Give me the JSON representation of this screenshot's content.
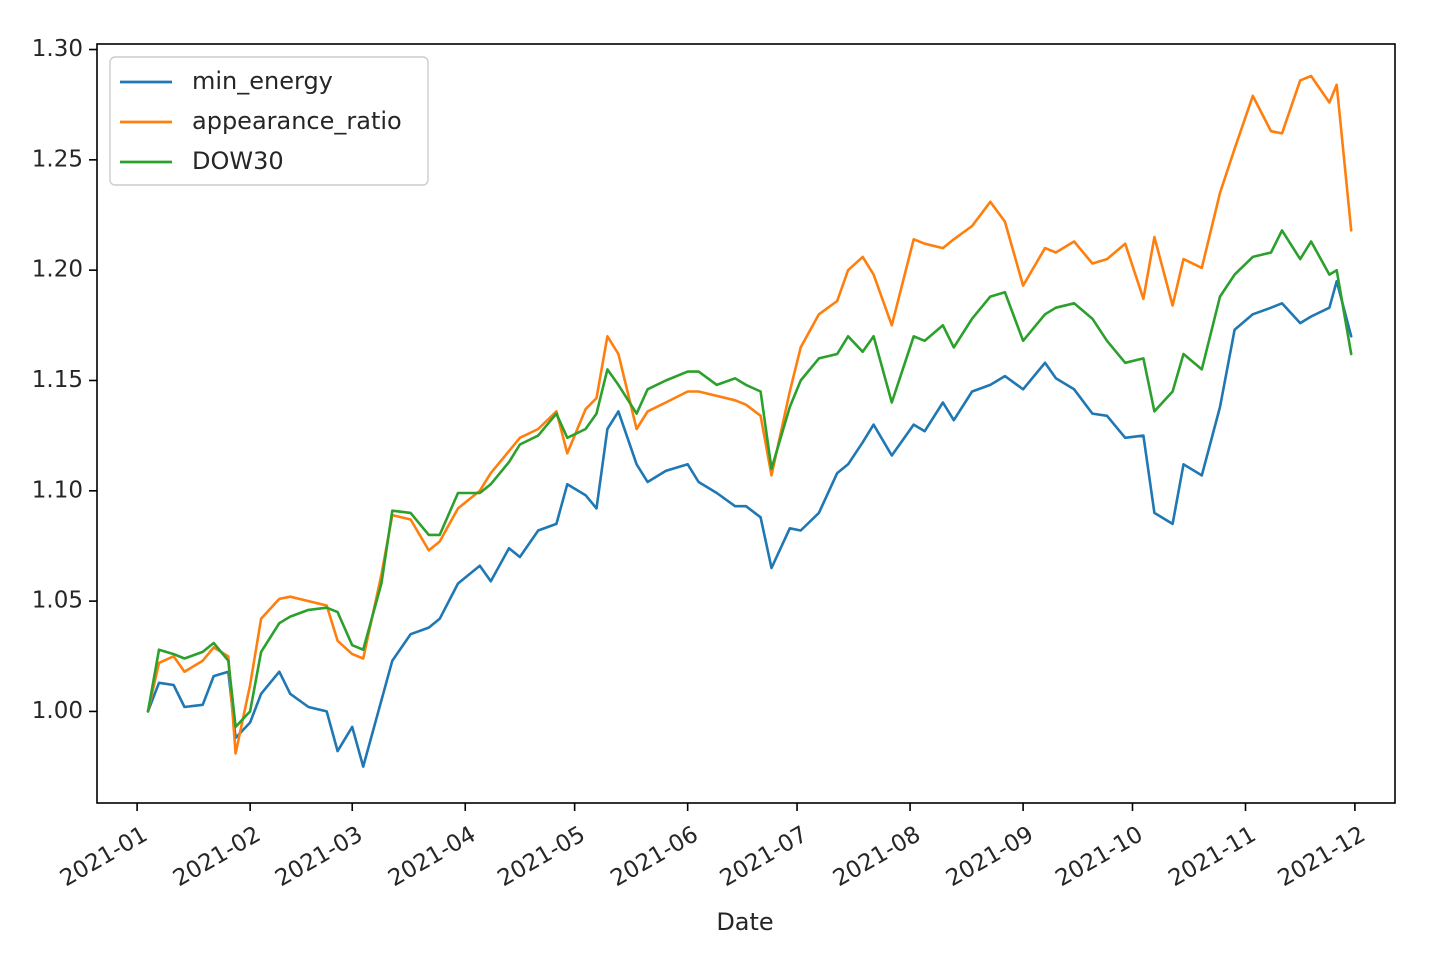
{
  "chart_data": {
    "type": "line",
    "title": "",
    "xlabel": "Date",
    "ylabel": "",
    "xlim": [
      "2020-12-21",
      "2021-12-12"
    ],
    "ylim": [
      0.9585,
      1.3025
    ],
    "x_ticks": [
      "2021-01",
      "2021-02",
      "2021-03",
      "2021-04",
      "2021-05",
      "2021-06",
      "2021-07",
      "2021-08",
      "2021-09",
      "2021-10",
      "2021-11",
      "2021-12"
    ],
    "x_tick_dates": [
      "2021-01-01",
      "2021-02-01",
      "2021-03-01",
      "2021-04-01",
      "2021-05-01",
      "2021-06-01",
      "2021-07-01",
      "2021-08-01",
      "2021-09-01",
      "2021-10-01",
      "2021-11-01",
      "2021-12-01"
    ],
    "y_ticks": [
      "1.00",
      "1.05",
      "1.10",
      "1.15",
      "1.20",
      "1.25",
      "1.30"
    ],
    "y_tick_values": [
      1.0,
      1.05,
      1.1,
      1.15,
      1.2,
      1.25,
      1.3
    ],
    "grid": false,
    "legend_position": "top-left",
    "dates": [
      "2021-01-04",
      "2021-01-07",
      "2021-01-11",
      "2021-01-14",
      "2021-01-19",
      "2021-01-22",
      "2021-01-26",
      "2021-01-28",
      "2021-02-01",
      "2021-02-04",
      "2021-02-09",
      "2021-02-12",
      "2021-02-17",
      "2021-02-22",
      "2021-02-25",
      "2021-03-01",
      "2021-03-04",
      "2021-03-09",
      "2021-03-12",
      "2021-03-17",
      "2021-03-22",
      "2021-03-25",
      "2021-03-30",
      "2021-04-05",
      "2021-04-08",
      "2021-04-13",
      "2021-04-16",
      "2021-04-21",
      "2021-04-26",
      "2021-04-29",
      "2021-05-04",
      "2021-05-07",
      "2021-05-10",
      "2021-05-13",
      "2021-05-18",
      "2021-05-21",
      "2021-05-26",
      "2021-06-01",
      "2021-06-04",
      "2021-06-09",
      "2021-06-14",
      "2021-06-17",
      "2021-06-21",
      "2021-06-24",
      "2021-06-29",
      "2021-07-02",
      "2021-07-07",
      "2021-07-12",
      "2021-07-15",
      "2021-07-19",
      "2021-07-22",
      "2021-07-27",
      "2021-08-02",
      "2021-08-05",
      "2021-08-10",
      "2021-08-13",
      "2021-08-18",
      "2021-08-23",
      "2021-08-27",
      "2021-09-01",
      "2021-09-07",
      "2021-09-10",
      "2021-09-15",
      "2021-09-20",
      "2021-09-24",
      "2021-09-29",
      "2021-10-04",
      "2021-10-07",
      "2021-10-12",
      "2021-10-15",
      "2021-10-20",
      "2021-10-25",
      "2021-10-29",
      "2021-11-03",
      "2021-11-08",
      "2021-11-11",
      "2021-11-16",
      "2021-11-19",
      "2021-11-24",
      "2021-11-26",
      "2021-11-30"
    ],
    "series": [
      {
        "name": "min_energy",
        "color": "#1f77b4",
        "values": [
          1.0,
          1.013,
          1.012,
          1.002,
          1.003,
          1.016,
          1.018,
          0.988,
          0.995,
          1.008,
          1.018,
          1.008,
          1.002,
          1.0,
          0.982,
          0.993,
          0.975,
          1.005,
          1.023,
          1.035,
          1.038,
          1.042,
          1.058,
          1.066,
          1.059,
          1.074,
          1.07,
          1.082,
          1.085,
          1.103,
          1.098,
          1.092,
          1.128,
          1.136,
          1.112,
          1.104,
          1.109,
          1.112,
          1.104,
          1.099,
          1.093,
          1.093,
          1.088,
          1.065,
          1.083,
          1.082,
          1.09,
          1.108,
          1.112,
          1.122,
          1.13,
          1.116,
          1.13,
          1.127,
          1.14,
          1.132,
          1.145,
          1.148,
          1.152,
          1.146,
          1.158,
          1.151,
          1.146,
          1.135,
          1.134,
          1.124,
          1.125,
          1.09,
          1.085,
          1.112,
          1.107,
          1.138,
          1.173,
          1.18,
          1.183,
          1.185,
          1.176,
          1.179,
          1.183,
          1.195,
          1.17
        ]
      },
      {
        "name": "appearance_ratio",
        "color": "#ff7f0e",
        "values": [
          1.0,
          1.022,
          1.025,
          1.018,
          1.023,
          1.029,
          1.025,
          0.981,
          1.012,
          1.042,
          1.051,
          1.052,
          1.05,
          1.048,
          1.032,
          1.026,
          1.024,
          1.062,
          1.089,
          1.087,
          1.073,
          1.077,
          1.092,
          1.1,
          1.108,
          1.118,
          1.124,
          1.128,
          1.136,
          1.117,
          1.137,
          1.142,
          1.17,
          1.162,
          1.128,
          1.136,
          1.14,
          1.145,
          1.145,
          1.143,
          1.141,
          1.139,
          1.134,
          1.107,
          1.145,
          1.165,
          1.18,
          1.186,
          1.2,
          1.206,
          1.198,
          1.175,
          1.214,
          1.212,
          1.21,
          1.214,
          1.22,
          1.231,
          1.222,
          1.193,
          1.21,
          1.208,
          1.213,
          1.203,
          1.205,
          1.212,
          1.187,
          1.215,
          1.184,
          1.205,
          1.201,
          1.235,
          1.255,
          1.279,
          1.263,
          1.262,
          1.286,
          1.288,
          1.276,
          1.284,
          1.218
        ]
      },
      {
        "name": "DOW30",
        "color": "#2ca02c",
        "values": [
          1.0,
          1.028,
          1.026,
          1.024,
          1.027,
          1.031,
          1.023,
          0.993,
          1.0,
          1.027,
          1.04,
          1.043,
          1.046,
          1.047,
          1.045,
          1.03,
          1.028,
          1.058,
          1.091,
          1.09,
          1.08,
          1.08,
          1.099,
          1.099,
          1.103,
          1.113,
          1.121,
          1.125,
          1.135,
          1.124,
          1.128,
          1.135,
          1.155,
          1.148,
          1.135,
          1.146,
          1.15,
          1.154,
          1.154,
          1.148,
          1.151,
          1.148,
          1.145,
          1.11,
          1.138,
          1.15,
          1.16,
          1.162,
          1.17,
          1.163,
          1.17,
          1.14,
          1.17,
          1.168,
          1.175,
          1.165,
          1.178,
          1.188,
          1.19,
          1.168,
          1.18,
          1.183,
          1.185,
          1.178,
          1.168,
          1.158,
          1.16,
          1.136,
          1.145,
          1.162,
          1.155,
          1.188,
          1.198,
          1.206,
          1.208,
          1.218,
          1.205,
          1.213,
          1.198,
          1.2,
          1.162
        ]
      }
    ]
  }
}
